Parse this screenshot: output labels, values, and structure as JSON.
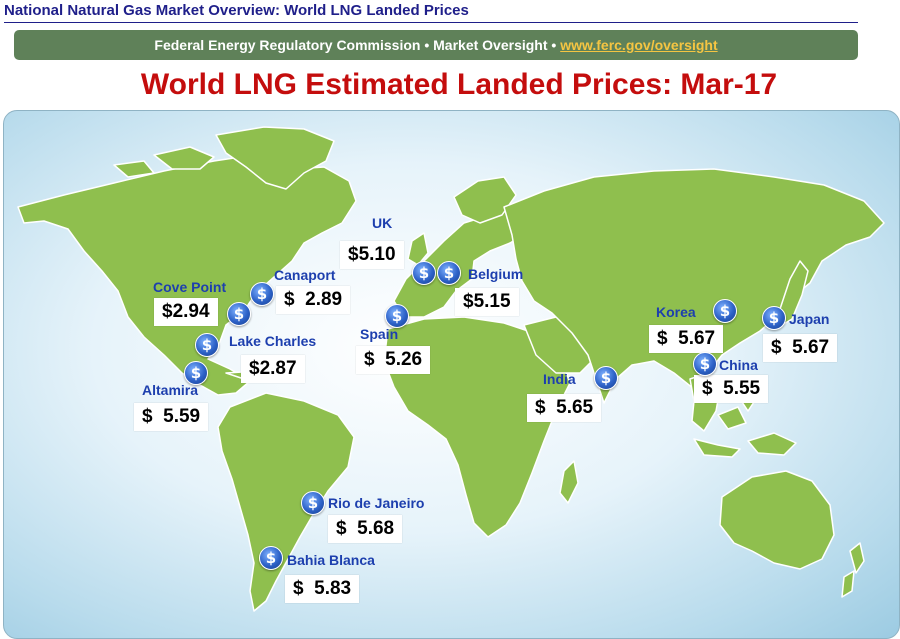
{
  "header": {
    "title": "National Natural Gas Market Overview: World LNG Landed Prices"
  },
  "banner": {
    "text": "Federal Energy Regulatory Commission • Market Oversight • ",
    "link_text": "www.ferc.gov/oversight"
  },
  "main_title": "World LNG Estimated Landed Prices: Mar-17",
  "colors": {
    "title_red": "#c40d0d",
    "banner_green": "#5f8159",
    "label_blue": "#1d3fae",
    "land_green": "#8fbf4e",
    "link_gold": "#f5c542"
  },
  "icons": {
    "terminal_marker": "dollar-coin-icon"
  },
  "coin_symbol": "$",
  "terminals": [
    {
      "id": "cove-point",
      "name": "Cove Point",
      "price": "$2.94"
    },
    {
      "id": "canaport",
      "name": "Canaport",
      "price": "$  2.89"
    },
    {
      "id": "lake-charles",
      "name": "Lake Charles",
      "price": "$2.87"
    },
    {
      "id": "altamira",
      "name": "Altamira",
      "price": "$  5.59"
    },
    {
      "id": "uk",
      "name": "UK",
      "price": "$5.10"
    },
    {
      "id": "belgium",
      "name": "Belgium",
      "price": "$5.15"
    },
    {
      "id": "spain",
      "name": "Spain",
      "price": "$  5.26"
    },
    {
      "id": "india",
      "name": "India",
      "price": "$  5.65"
    },
    {
      "id": "korea",
      "name": "Korea",
      "price": "$  5.67"
    },
    {
      "id": "japan",
      "name": "Japan",
      "price": "$  5.67"
    },
    {
      "id": "china",
      "name": "China",
      "price": "$  5.55"
    },
    {
      "id": "rio-de-janeiro",
      "name": "Rio de Janeiro",
      "price": "$  5.68"
    },
    {
      "id": "bahia-blanca",
      "name": "Bahia Blanca",
      "price": "$  5.83"
    }
  ]
}
